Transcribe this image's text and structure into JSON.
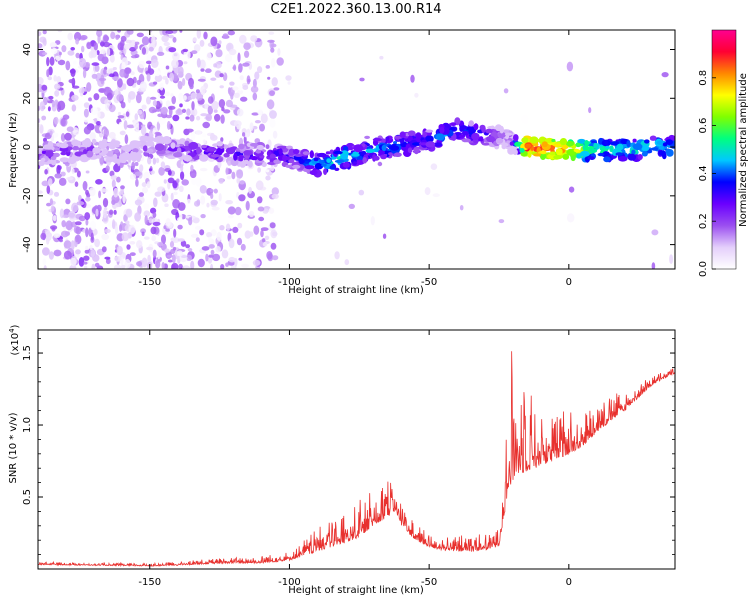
{
  "title": "C2E1.2022.360.13.00.R14",
  "chart_data": [
    {
      "type": "heatmap",
      "xlabel": "Height of straight line (km)",
      "ylabel": "Frequency (Hz)",
      "xlim": [
        -190,
        38
      ],
      "ylim": [
        -50,
        48
      ],
      "xticks": [
        -150,
        -100,
        -50,
        0
      ],
      "yticks": [
        -40,
        -20,
        0,
        20,
        40
      ],
      "ridge": {
        "x": [
          -190,
          -180,
          -170,
          -160,
          -150,
          -140,
          -130,
          -120,
          -110,
          -100,
          -95,
          -90,
          -85,
          -80,
          -75,
          -70,
          -65,
          -60,
          -55,
          -50,
          -45,
          -40,
          -35,
          -30,
          -25,
          -20,
          -15,
          -10,
          -5,
          0,
          5,
          10,
          20,
          30,
          38
        ],
        "y": [
          -3,
          -2,
          -1,
          -2,
          0,
          -1,
          -2,
          -3,
          -3,
          -4,
          -6,
          -7,
          -6,
          -4,
          -3,
          -1,
          0,
          1,
          2,
          3,
          5,
          7,
          6,
          5,
          4,
          2,
          0,
          0,
          -1,
          -1,
          -1,
          -1,
          -1,
          0,
          0
        ],
        "amplitude": [
          0.3,
          0.3,
          0.25,
          0.2,
          0.25,
          0.3,
          0.35,
          0.35,
          0.35,
          0.4,
          0.45,
          0.5,
          0.55,
          0.55,
          0.5,
          0.5,
          0.5,
          0.5,
          0.45,
          0.45,
          0.5,
          0.45,
          0.45,
          0.4,
          0.3,
          0.3,
          0.95,
          0.95,
          0.9,
          0.85,
          0.7,
          0.6,
          0.6,
          0.55,
          0.55
        ]
      },
      "colorbar": {
        "label": "Normalized spectral amplitude",
        "range": [
          0,
          1
        ],
        "ticks": [
          "0.0",
          "0.2",
          "0.4",
          "0.6",
          "0.8"
        ],
        "tick_values": [
          0,
          0.2,
          0.4,
          0.6,
          0.8
        ],
        "colors": [
          "#ffffff",
          "#e4cffb",
          "#9b4ff0",
          "#6a00ff",
          "#0000ff",
          "#00c8ff",
          "#00ff80",
          "#80ff00",
          "#ffff00",
          "#ff8800",
          "#ff0033",
          "#ff0090"
        ]
      }
    },
    {
      "type": "line",
      "xlabel": "Height of straight line (km)",
      "ylabel": "SNR (10 * v/v)",
      "y_multiplier": "(x10",
      "y_multiplier_exp": "4",
      "y_multiplier_close": ")",
      "xlim": [
        -190,
        38
      ],
      "ylim": [
        0,
        16600
      ],
      "xticks": [
        -150,
        -100,
        -50,
        0
      ],
      "yticks": [
        5000,
        10000,
        15000
      ],
      "ytick_labels": [
        "0.5",
        "1.0",
        "1.5"
      ],
      "color": "#e8312e",
      "envelope": {
        "x": [
          -190,
          -170,
          -150,
          -140,
          -130,
          -120,
          -110,
          -100,
          -95,
          -90,
          -85,
          -80,
          -75,
          -70,
          -65,
          -62,
          -60,
          -55,
          -50,
          -45,
          -40,
          -35,
          -30,
          -25,
          -22,
          -20,
          -18,
          -15,
          -12,
          -10,
          -5,
          0,
          5,
          10,
          20,
          30,
          38
        ],
        "base": [
          300,
          250,
          200,
          250,
          350,
          400,
          400,
          600,
          900,
          1200,
          1500,
          1800,
          2200,
          3000,
          3600,
          4000,
          3000,
          2000,
          1500,
          1300,
          1200,
          1200,
          1300,
          1600,
          5000,
          6000,
          6500,
          6800,
          7000,
          7200,
          7500,
          8000,
          8500,
          9500,
          11000,
          12800,
          13600
        ],
        "peak": [
          500,
          400,
          400,
          500,
          700,
          800,
          900,
          1200,
          2000,
          2800,
          3500,
          4000,
          4800,
          5500,
          6300,
          6400,
          5000,
          3200,
          2400,
          2200,
          2300,
          2600,
          2400,
          2800,
          11000,
          16600,
          15500,
          14500,
          12000,
          11000,
          10500,
          11500,
          11000,
          11500,
          12500,
          13500,
          14000
        ]
      }
    }
  ]
}
